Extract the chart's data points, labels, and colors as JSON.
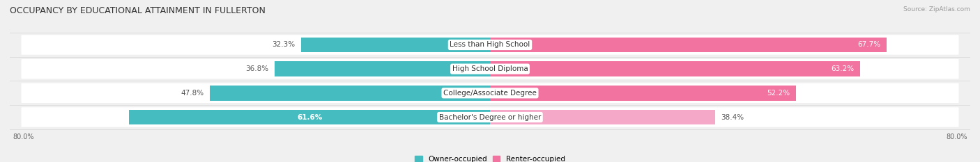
{
  "title": "OCCUPANCY BY EDUCATIONAL ATTAINMENT IN FULLERTON",
  "source": "Source: ZipAtlas.com",
  "categories": [
    "Less than High School",
    "High School Diploma",
    "College/Associate Degree",
    "Bachelor's Degree or higher"
  ],
  "owner_values": [
    32.3,
    36.8,
    47.8,
    61.6
  ],
  "renter_values": [
    67.7,
    63.2,
    52.2,
    38.4
  ],
  "owner_color": "#45BCBF",
  "renter_color_dark": "#F272A0",
  "renter_color_light": "#F5A8C8",
  "axis_range": 80.0,
  "background_color": "#f0f0f0",
  "row_bg_color": "#ffffff",
  "title_fontsize": 9,
  "value_fontsize": 7.5,
  "label_fontsize": 7.5,
  "legend_owner": "Owner-occupied",
  "legend_renter": "Renter-occupied",
  "axis_label_left": "80.0%",
  "axis_label_right": "80.0%"
}
